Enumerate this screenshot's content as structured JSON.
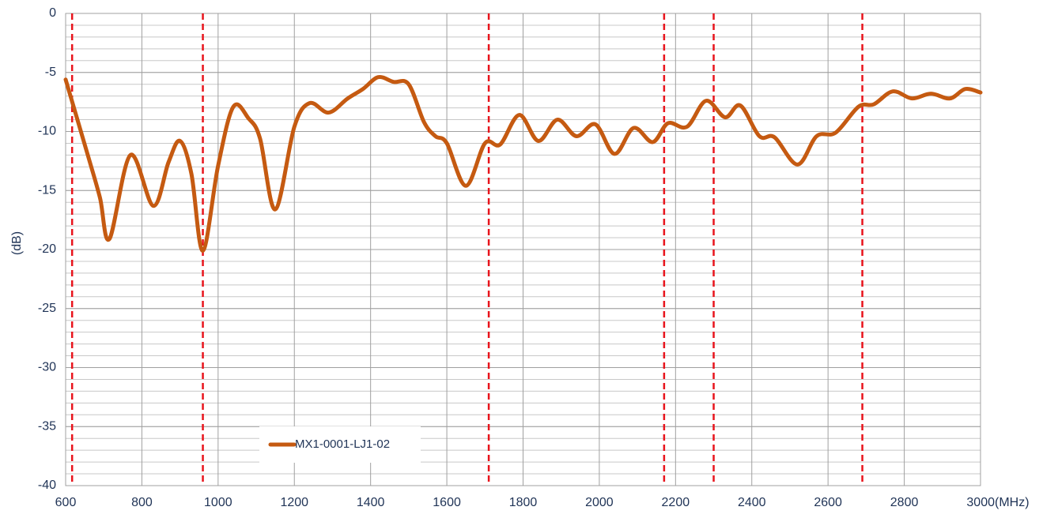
{
  "chart_data": {
    "type": "line",
    "y_label": "(dB)",
    "x_label": "(MHz)",
    "x": [
      600,
      660,
      690,
      715,
      770,
      830,
      870,
      900,
      930,
      960,
      1000,
      1040,
      1080,
      1110,
      1150,
      1200,
      1240,
      1290,
      1340,
      1380,
      1420,
      1460,
      1500,
      1540,
      1570,
      1600,
      1650,
      1700,
      1740,
      1790,
      1840,
      1890,
      1940,
      1990,
      2040,
      2090,
      2140,
      2180,
      2230,
      2280,
      2330,
      2370,
      2420,
      2460,
      2520,
      2570,
      2620,
      2680,
      2720,
      2770,
      2820,
      2870,
      2920,
      2960,
      3000
    ],
    "series": [
      {
        "name": "MX1-0001-LJ1-02",
        "color": "#c55a11",
        "values": [
          -5.6,
          -12.2,
          -15.6,
          -19.1,
          -12.0,
          -16.3,
          -12.6,
          -10.8,
          -13.6,
          -20.1,
          -12.9,
          -7.9,
          -8.9,
          -10.6,
          -16.6,
          -9.6,
          -7.6,
          -8.4,
          -7.2,
          -6.4,
          -5.4,
          -5.8,
          -6.0,
          -9.2,
          -10.4,
          -11.0,
          -14.6,
          -11.0,
          -11.1,
          -8.6,
          -10.8,
          -9.0,
          -10.4,
          -9.4,
          -11.9,
          -9.7,
          -10.9,
          -9.3,
          -9.6,
          -7.4,
          -8.8,
          -7.8,
          -10.4,
          -10.5,
          -12.8,
          -10.4,
          -10.1,
          -7.9,
          -7.7,
          -6.6,
          -7.2,
          -6.8,
          -7.2,
          -6.4,
          -6.7
        ]
      }
    ],
    "xlim": [
      600,
      3000
    ],
    "xticks": [
      600,
      800,
      1000,
      1200,
      1400,
      1600,
      1800,
      2000,
      2200,
      2400,
      2600,
      2800,
      3000
    ],
    "ylim": [
      -40,
      0
    ],
    "yticks": [
      -40,
      -35,
      -30,
      -25,
      -20,
      -15,
      -10,
      -5,
      0
    ],
    "y_minor_step": 1,
    "grid": true,
    "markers": [
      617,
      960,
      1710,
      2170,
      2300,
      2690
    ],
    "marker_color": "#e8141c",
    "legend": "bottom-left"
  }
}
